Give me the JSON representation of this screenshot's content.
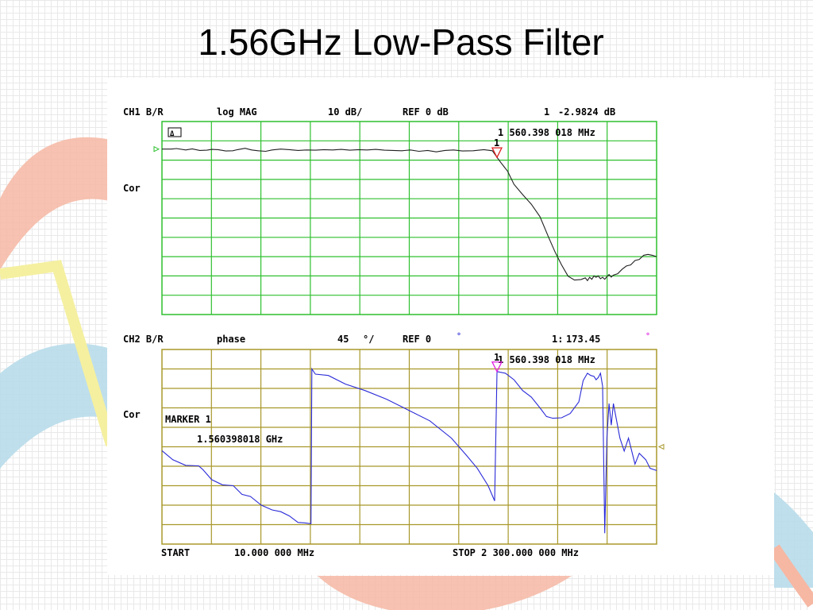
{
  "slide": {
    "title": "1.56GHz Low-Pass Filter"
  },
  "colors": {
    "ch1_grid": "#2ec02e",
    "ch2_grid": "#a8982a",
    "ch1_trace": "#202020",
    "ch2_trace": "#2a2ad8",
    "marker_ch1": "#e02020",
    "marker_ch2": "#e020e0",
    "ref_ch1": "#2ec02e",
    "ref_ch2": "#a8982a"
  },
  "chart_data": [
    {
      "type": "line",
      "channel_label": "CH1 B/R",
      "format": "log MAG",
      "scale_label": "10 dB/",
      "ref_label": "REF 0 dB",
      "status": "Cor",
      "marker_number": "1",
      "marker_readout_prefix": "1",
      "marker_readout_value": "-2.9824 dB",
      "marker_freq": "1 560.398 018 MHz",
      "marker_ref": "1",
      "icon_box": "Δ",
      "xlim": [
        10,
        2300
      ],
      "ylim": [
        -60,
        10
      ],
      "grid": true,
      "series": [
        {
          "x": [
            10,
            54,
            77,
            120,
            150,
            185,
            218,
            240,
            270,
            305,
            338,
            360,
            395,
            425,
            455,
            490,
            520,
            560,
            600,
            640,
            680,
            720,
            760,
            800,
            840,
            880,
            920,
            960,
            1000,
            1040,
            1080,
            1120,
            1160,
            1200,
            1240,
            1280,
            1320,
            1360,
            1400,
            1450,
            1500,
            1540,
            1561,
            1580,
            1610,
            1640,
            1680,
            1720,
            1760,
            1800,
            1830,
            1860,
            1890,
            1920,
            1950,
            1970,
            1980,
            1990,
            2000,
            2010,
            2020,
            2030,
            2040,
            2050,
            2060,
            2070,
            2080,
            2090,
            2100,
            2120,
            2140,
            2160,
            2180,
            2200,
            2220,
            2240,
            2260,
            2280,
            2300
          ],
          "values": [
            0,
            0,
            0.2,
            -0.3,
            0.1,
            -0.5,
            -0.4,
            -0.1,
            -0.2,
            -0.7,
            -0.6,
            -0.2,
            0.3,
            -0.3,
            -0.6,
            -0.8,
            -0.3,
            0,
            -0.2,
            -0.5,
            -0.3,
            -0.4,
            -0.2,
            -0.3,
            -0.1,
            -0.4,
            -0.2,
            -0.3,
            -0.1,
            -0.4,
            -0.5,
            -0.6,
            -0.3,
            -0.8,
            -0.5,
            -1.0,
            -0.5,
            -0.3,
            -0.7,
            -0.6,
            -0.2,
            -0.6,
            -3.0,
            -5.0,
            -8.0,
            -12.8,
            -16.5,
            -20,
            -24.5,
            -32,
            -37.3,
            -42,
            -46.1,
            -47.5,
            -47.3,
            -46.7,
            -47.7,
            -46.5,
            -47.2,
            -46.0,
            -46.5,
            -46.0,
            -47.0,
            -46.5,
            -47.2,
            -46.3,
            -45.5,
            -46.4,
            -45.7,
            -45.2,
            -43.6,
            -42.4,
            -42.0,
            -40.4,
            -40.0,
            -38.5,
            -38.2,
            -38.5,
            -39.0
          ]
        }
      ]
    },
    {
      "type": "line",
      "channel_label": "CH2 B/R",
      "format": "phase",
      "scale_label": "45",
      "scale_unit": "°/",
      "ref_label": "REF 0",
      "ref_unit": "°",
      "status": "Cor",
      "marker_number": "1",
      "marker_readout_prefix": "1:",
      "marker_readout_value": "173.45",
      "marker_readout_unit": "°",
      "marker_freq": "1 560.398 018 MHz",
      "marker_ref": "1",
      "marker_info_title": "MARKER 1",
      "marker_info_value": "1.560398018 GHz",
      "start_label": "START",
      "start_value": "10.000 000 MHz",
      "stop_label": "STOP 2 300.000 000 MHz",
      "xlim": [
        10,
        2300
      ],
      "ylim": [
        -225,
        225
      ],
      "grid": true,
      "series": [
        {
          "x": [
            10,
            60,
            120,
            180,
            200,
            240,
            290,
            340,
            380,
            420,
            470,
            520,
            560,
            600,
            640,
            670,
            700,
            704,
            720,
            780,
            860,
            950,
            1050,
            1150,
            1250,
            1350,
            1420,
            1470,
            1520,
            1550,
            1561,
            1570,
            1600,
            1640,
            1680,
            1720,
            1760,
            1790,
            1820,
            1860,
            1900,
            1940,
            1960,
            1980,
            1995,
            2010,
            2020,
            2030,
            2040,
            2050,
            2060,
            2070,
            2080,
            2090,
            2100,
            2130,
            2150,
            2170,
            2200,
            2220,
            2250,
            2270,
            2300
          ],
          "values": [
            -9,
            -30,
            -43,
            -44,
            -53,
            -76,
            -88,
            -90,
            -110,
            -115,
            -135,
            -146,
            -150,
            -160,
            -175,
            -176,
            -178,
            180,
            168,
            165,
            145,
            130,
            110,
            85,
            60,
            20,
            -20,
            -50,
            -90,
            -125,
            174,
            173,
            170,
            155,
            130,
            115,
            90,
            70,
            66,
            67,
            77,
            104,
            153,
            170,
            165,
            163,
            155,
            160,
            170,
            140,
            -200,
            20,
            100,
            50,
            100,
            20,
            -10,
            20,
            -40,
            -15,
            -30,
            -50,
            -55
          ]
        }
      ]
    }
  ]
}
